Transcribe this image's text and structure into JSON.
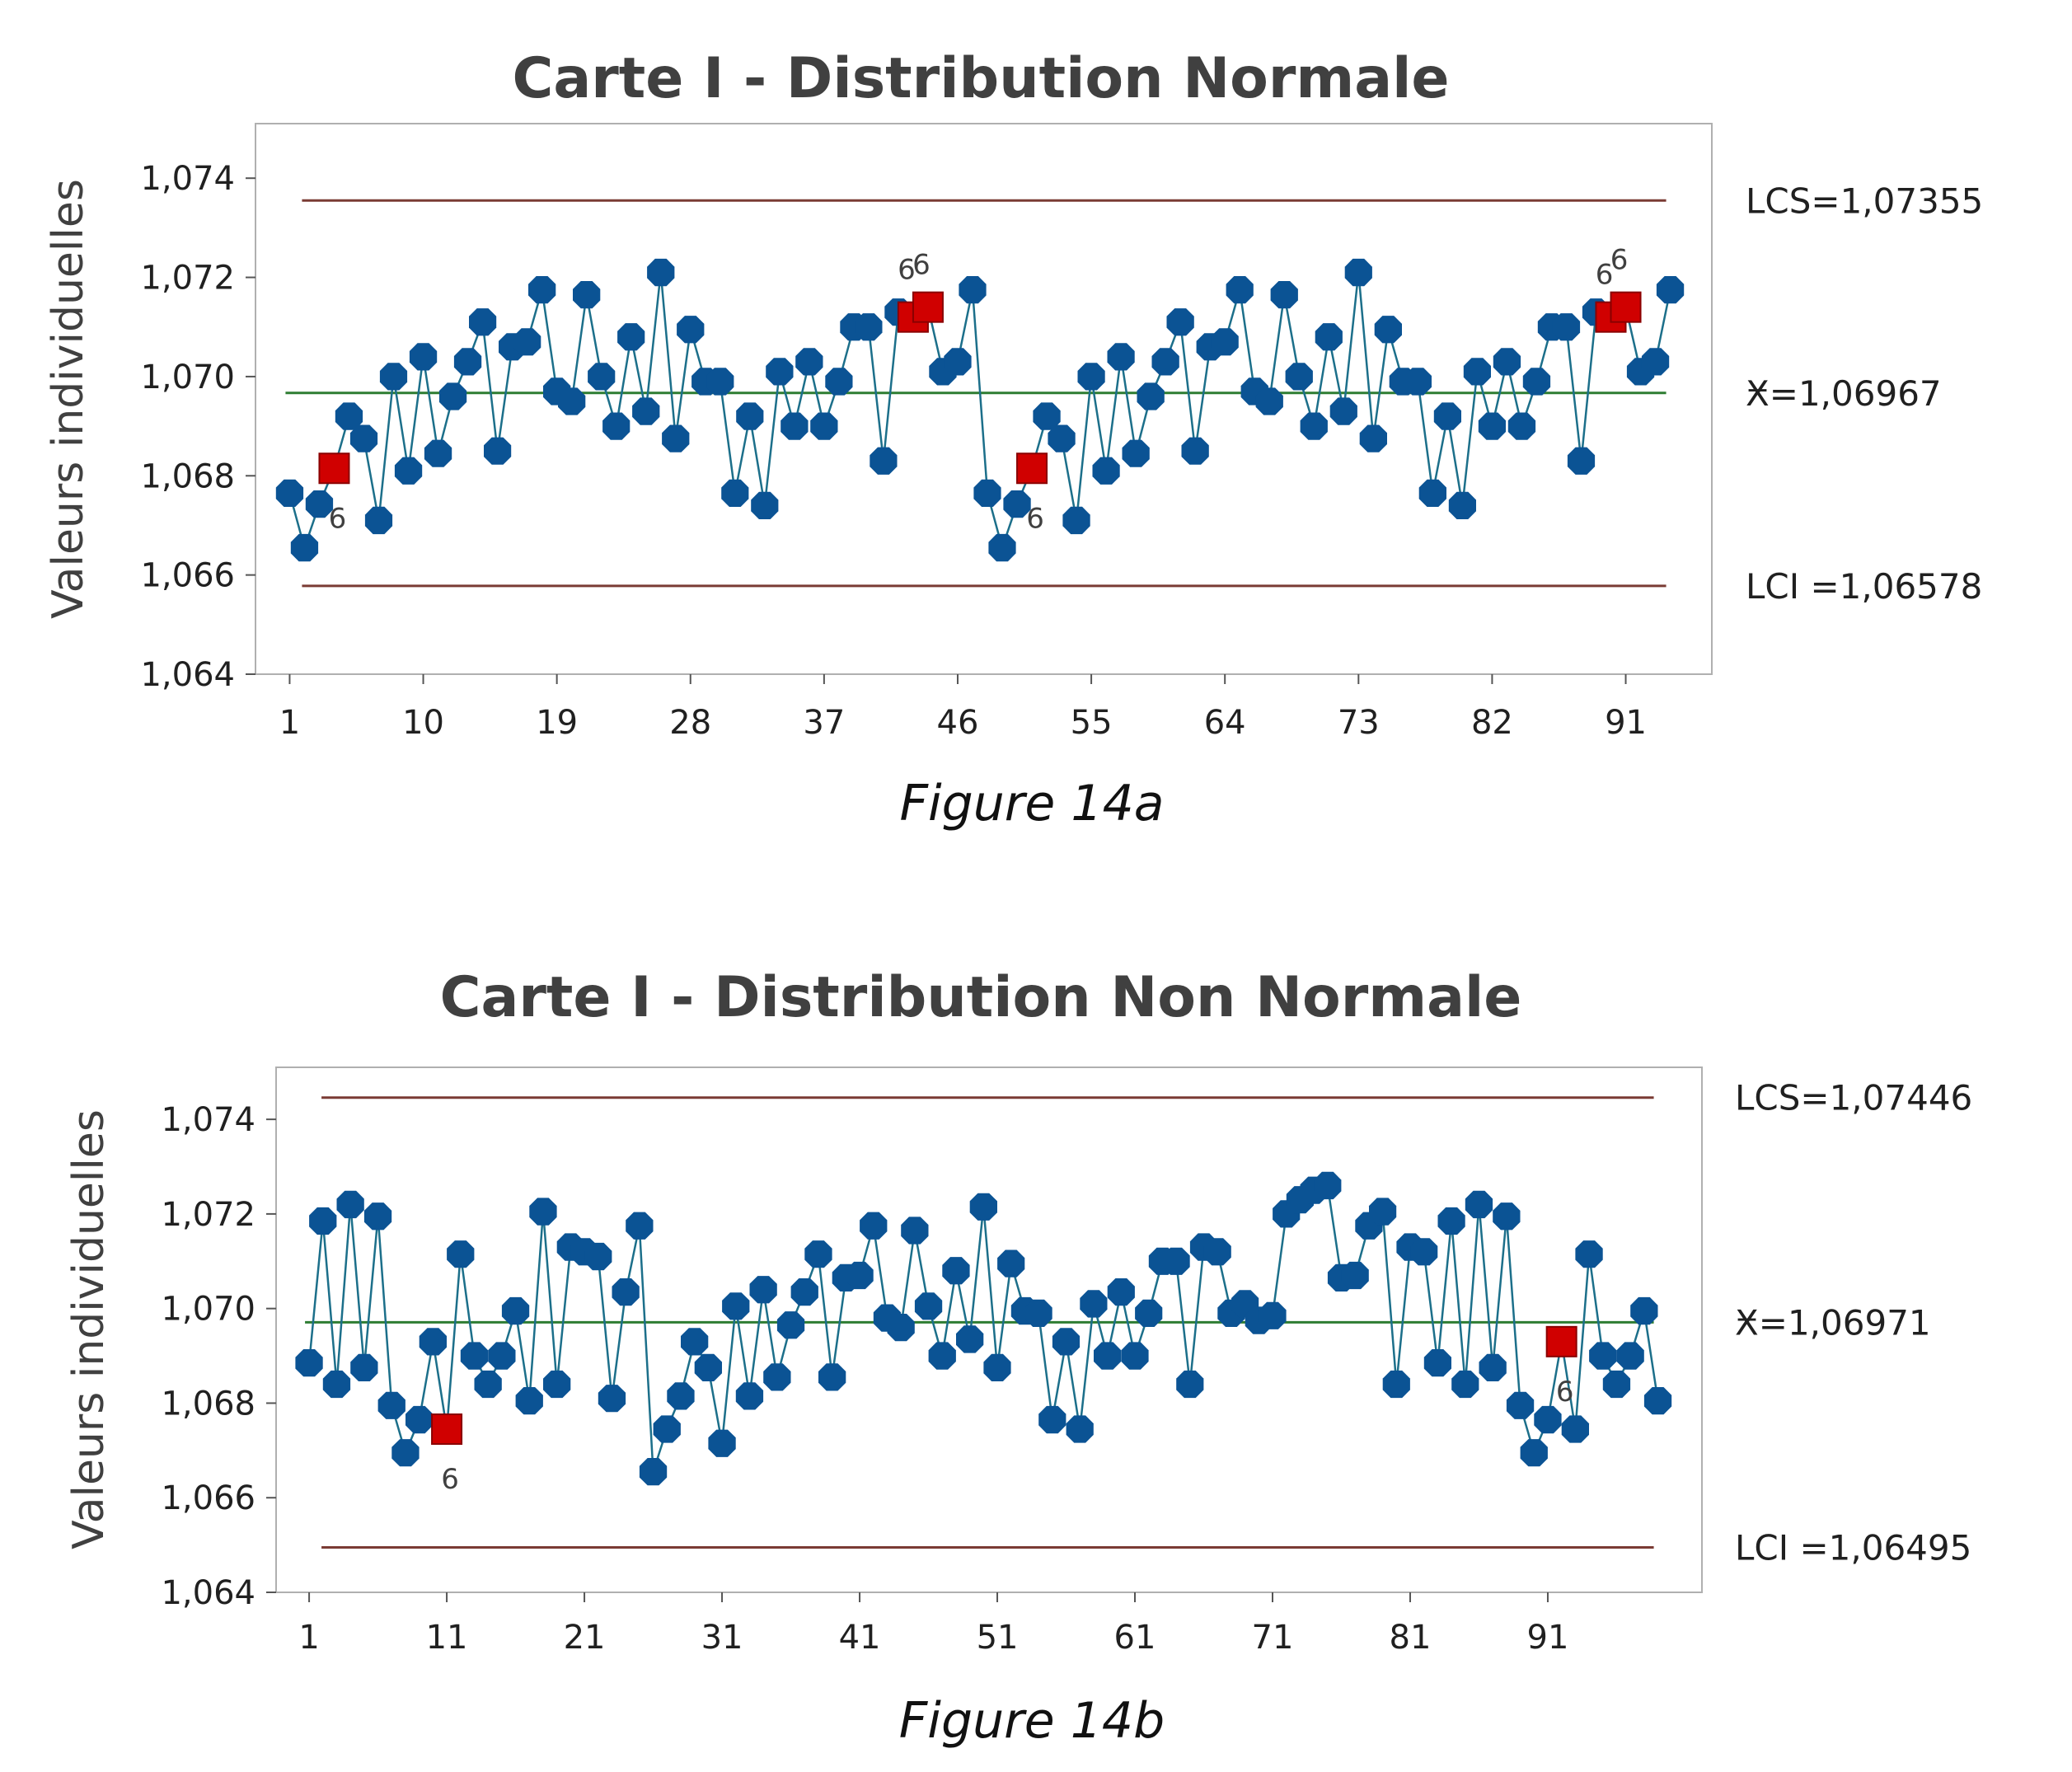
{
  "colors": {
    "point": "#0b5394",
    "line": "#1c6f8a",
    "flagged": "#d00000",
    "limit": "#7a3b34",
    "center": "#2e7d32",
    "frame": "#b0b0b0"
  },
  "chart_data": [
    {
      "type": "line",
      "title": "Carte I - Distribution Normale",
      "ylabel": "Valeurs individuelles",
      "caption": "Figure 14a",
      "ylim": [
        1.064,
        1.0751
      ],
      "xlim": [
        -1.3,
        96.8
      ],
      "yticks": [
        1.064,
        1.066,
        1.068,
        1.07,
        1.072,
        1.074
      ],
      "ytick_labels": [
        "1,064",
        "1,066",
        "1,068",
        "1,070",
        "1,072",
        "1,074"
      ],
      "xticks": [
        1,
        10,
        19,
        28,
        37,
        46,
        55,
        64,
        73,
        82,
        91
      ],
      "ucl": 1.07355,
      "ucl_label": "LCS=1,07355",
      "center": 1.06967,
      "center_bar": "_",
      "center_label": "X=1,06967",
      "lcl": 1.06578,
      "lcl_label": "LCI =1,06578",
      "flag_text": "6",
      "values": [
        1.06765,
        1.06655,
        1.06743,
        1.06815,
        1.0692,
        1.06875,
        1.0671,
        1.07,
        1.0681,
        1.0704,
        1.06845,
        1.0696,
        1.0703,
        1.0711,
        1.0685,
        1.0706,
        1.0707,
        1.07175,
        1.0697,
        1.0695,
        1.07165,
        1.07,
        1.069,
        1.0708,
        1.0693,
        1.0721,
        1.06875,
        1.07095,
        1.0699,
        1.0699,
        1.06765,
        1.0692,
        1.0674,
        1.0701,
        1.069,
        1.0703,
        1.069,
        1.0699,
        1.071,
        1.071,
        1.0683,
        1.0713,
        1.0712,
        1.0714,
        1.0701,
        1.0703,
        1.07175,
        1.06765,
        1.06655,
        1.06743,
        1.06815,
        1.0692,
        1.06875,
        1.0671,
        1.07,
        1.0681,
        1.0704,
        1.06845,
        1.0696,
        1.0703,
        1.0711,
        1.0685,
        1.0706,
        1.0707,
        1.07175,
        1.0697,
        1.0695,
        1.07165,
        1.07,
        1.069,
        1.0708,
        1.0693,
        1.0721,
        1.06875,
        1.07095,
        1.0699,
        1.0699,
        1.06765,
        1.0692,
        1.0674,
        1.0701,
        1.069,
        1.0703,
        1.069,
        1.0699,
        1.071,
        1.071,
        1.0683,
        1.0713,
        1.0712,
        1.0714,
        1.0701,
        1.0703,
        1.07175
      ],
      "flagged_points": [
        4,
        43,
        44,
        51,
        90,
        91
      ],
      "flag_labels": [
        {
          "x": 4,
          "pos": "below"
        },
        {
          "x": 43,
          "pos": "above"
        },
        {
          "x": 44,
          "pos": "above"
        },
        {
          "x": 51,
          "pos": "below"
        },
        {
          "x": 90,
          "pos": "above"
        },
        {
          "x": 91,
          "pos": "above"
        }
      ]
    },
    {
      "type": "line",
      "title": "Carte I - Distribution Non Normale",
      "ylabel": "Valeurs individuelles",
      "caption": "Figure 14b",
      "ylim": [
        1.064,
        1.0751
      ],
      "xlim": [
        -1.4,
        102.2
      ],
      "yticks": [
        1.064,
        1.066,
        1.068,
        1.07,
        1.072,
        1.074
      ],
      "ytick_labels": [
        "1,064",
        "1,066",
        "1,068",
        "1,070",
        "1,072",
        "1,074"
      ],
      "xticks": [
        1,
        11,
        21,
        31,
        41,
        51,
        61,
        71,
        81,
        91
      ],
      "ucl": 1.07446,
      "ucl_label": "LCS=1,07446",
      "center": 1.06971,
      "center_bar": "_",
      "center_label": "X=1,06971",
      "lcl": 1.06495,
      "lcl_label": "LCI =1,06495",
      "flag_text": "6",
      "values": [
        1.06885,
        1.07185,
        1.0684,
        1.0722,
        1.06875,
        1.07195,
        1.06795,
        1.06695,
        1.06765,
        1.0693,
        1.06745,
        1.07115,
        1.069,
        1.0684,
        1.069,
        1.06995,
        1.06805,
        1.07205,
        1.0684,
        1.0713,
        1.0712,
        1.0711,
        1.0681,
        1.07035,
        1.07175,
        1.06655,
        1.06745,
        1.06815,
        1.0693,
        1.06875,
        1.06715,
        1.07005,
        1.06815,
        1.0704,
        1.06855,
        1.06965,
        1.07035,
        1.07115,
        1.06855,
        1.07065,
        1.0707,
        1.07175,
        1.0698,
        1.0696,
        1.07165,
        1.07005,
        1.069,
        1.0708,
        1.06935,
        1.07215,
        1.06875,
        1.07095,
        1.06995,
        1.0699,
        1.06765,
        1.0693,
        1.06745,
        1.0701,
        1.069,
        1.07035,
        1.069,
        1.0699,
        1.071,
        1.071,
        1.0684,
        1.0713,
        1.0712,
        1.0699,
        1.0701,
        1.06975,
        1.06985,
        1.072,
        1.0723,
        1.0725,
        1.0726,
        1.07065,
        1.0707,
        1.07175,
        1.07205,
        1.0684,
        1.0713,
        1.0712,
        1.06885,
        1.07185,
        1.0684,
        1.0722,
        1.06875,
        1.07195,
        1.06795,
        1.06695,
        1.06765,
        1.0693,
        1.06745,
        1.07115,
        1.069,
        1.0684,
        1.069,
        1.06995,
        1.06805
      ],
      "flagged_points": [
        11,
        92
      ],
      "flag_labels": [
        {
          "x": 11,
          "pos": "below"
        },
        {
          "x": 92,
          "pos": "below"
        }
      ]
    }
  ]
}
